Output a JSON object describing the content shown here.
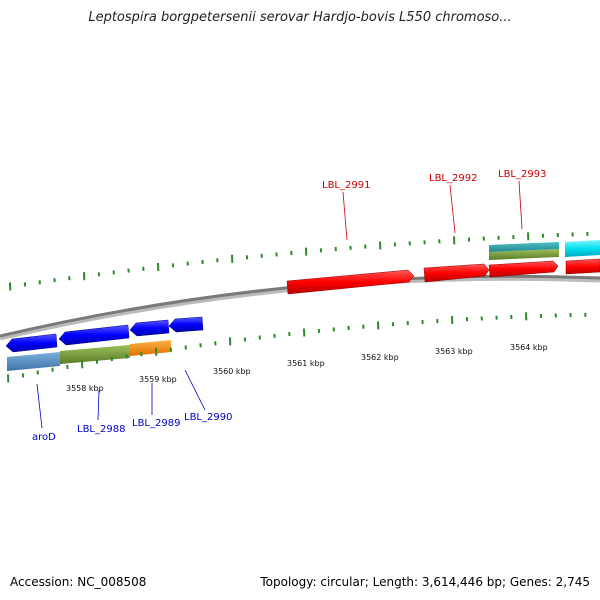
{
  "title": "Leptospira borgpetersenii serovar Hardjo-bovis L550 chromoso...",
  "footer": {
    "accession": "Accession: NC_008508",
    "summary": "Topology: circular; Length: 3,614,446 bp; Genes: 2,745"
  },
  "colors": {
    "backbone": "#7a7a7a",
    "tick": "#2a8a2a",
    "label_reverse": "#0000cc",
    "label_forward": "#cc0000"
  },
  "scale_labels": [
    "3558 kbp",
    "3559 kbp",
    "3560 kbp",
    "3561 kbp",
    "3562 kbp",
    "3563 kbp",
    "3564 kbp"
  ],
  "gene_labels": [
    {
      "name": "aroD",
      "strand": "reverse"
    },
    {
      "name": "LBL_2988",
      "strand": "reverse"
    },
    {
      "name": "LBL_2989",
      "strand": "reverse"
    },
    {
      "name": "LBL_2990",
      "strand": "reverse"
    },
    {
      "name": "LBL_2991",
      "strand": "forward"
    },
    {
      "name": "LBL_2992",
      "strand": "forward"
    },
    {
      "name": "LBL_2993",
      "strand": "forward"
    }
  ]
}
